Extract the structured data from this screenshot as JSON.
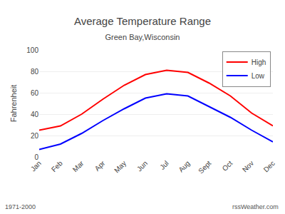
{
  "chart_data": {
    "type": "line",
    "title": "Average Temperature Range",
    "subtitle": "Green Bay,Wisconsin",
    "ylabel": "Fahrenheit",
    "categories": [
      "Jan",
      "Feb",
      "Mar",
      "Apr",
      "May",
      "Jun",
      "Jul",
      "Aug",
      "Sept",
      "Oct",
      "Nov",
      "Dec"
    ],
    "series": [
      {
        "name": "High",
        "color": "#ff0000",
        "values": [
          25,
          29,
          40,
          54,
          67,
          77,
          81,
          79,
          69,
          57,
          41,
          29
        ]
      },
      {
        "name": "Low",
        "color": "#0000ff",
        "values": [
          7,
          12,
          22,
          34,
          45,
          55,
          59,
          57,
          47,
          37,
          25,
          14
        ]
      }
    ],
    "ylim": [
      0,
      100
    ],
    "yticks": [
      0,
      20,
      40,
      60,
      80,
      100
    ],
    "grid": true,
    "legend": "upper right",
    "annotations": [
      "1971-2000",
      "rssWeather.com"
    ]
  }
}
